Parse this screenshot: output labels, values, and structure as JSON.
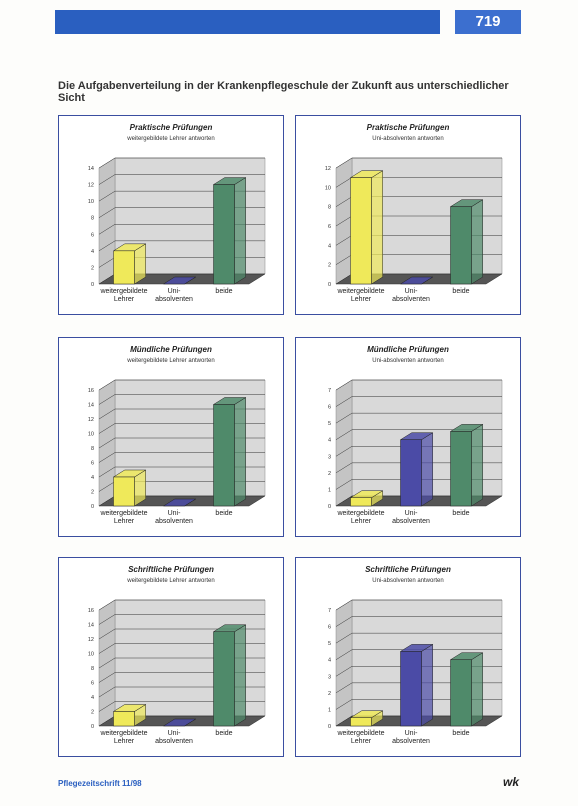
{
  "header": {
    "page_number": "719"
  },
  "title": "Die Aufgabenverteilung in der Krankenpflegeschule der Zukunft aus unterschiedlicher Sicht",
  "chart_data": [
    {
      "type": "bar3d",
      "title": "Praktische Prüfungen",
      "subtitle": "weitergebildete Lehrer antworten",
      "categories": [
        "weitergebildete\nLehrer",
        "Uni-\nabsolventen",
        "beide"
      ],
      "values": [
        4,
        0,
        12
      ],
      "colors": [
        "#efe95a",
        "#4b4ba6",
        "#4f8a6a"
      ],
      "ylim": [
        0,
        14
      ],
      "yticks": [
        0,
        2,
        4,
        6,
        8,
        10,
        12,
        14
      ],
      "grid": true
    },
    {
      "type": "bar3d",
      "title": "Praktische Prüfungen",
      "subtitle": "Uni-absolventen antworten",
      "categories": [
        "weitergebildete\nLehrer",
        "Uni-\nabsolventen",
        "beide"
      ],
      "values": [
        11,
        0,
        8
      ],
      "colors": [
        "#efe95a",
        "#4b4ba6",
        "#4f8a6a"
      ],
      "ylim": [
        0,
        12
      ],
      "yticks": [
        0,
        2,
        4,
        6,
        8,
        10,
        12
      ],
      "grid": true
    },
    {
      "type": "bar3d",
      "title": "Mündliche Prüfungen",
      "subtitle": "weitergebildete Lehrer antworten",
      "categories": [
        "weitergebildete\nLehrer",
        "Uni-\nabsolventen",
        "beide"
      ],
      "values": [
        4,
        0,
        14
      ],
      "colors": [
        "#efe95a",
        "#4b4ba6",
        "#4f8a6a"
      ],
      "ylim": [
        0,
        16
      ],
      "yticks": [
        0,
        2,
        4,
        6,
        8,
        10,
        12,
        14,
        16
      ],
      "grid": true
    },
    {
      "type": "bar3d",
      "title": "Mündliche Prüfungen",
      "subtitle": "Uni-absolventen antworten",
      "categories": [
        "weitergebildete\nLehrer",
        "Uni-\nabsolventen",
        "beide"
      ],
      "values": [
        0.5,
        4,
        4.5
      ],
      "colors": [
        "#efe95a",
        "#4b4ba6",
        "#4f8a6a"
      ],
      "ylim": [
        0,
        7
      ],
      "yticks": [
        0,
        1,
        2,
        3,
        4,
        5,
        6,
        7
      ],
      "grid": true
    },
    {
      "type": "bar3d",
      "title": "Schriftliche Prüfungen",
      "subtitle": "weitergebildete Lehrer antworten",
      "categories": [
        "weitergebildete\nLehrer",
        "Uni-\nabsolventen",
        "beide"
      ],
      "values": [
        2,
        0,
        13
      ],
      "colors": [
        "#efe95a",
        "#4b4ba6",
        "#4f8a6a"
      ],
      "ylim": [
        0,
        16
      ],
      "yticks": [
        0,
        2,
        4,
        6,
        8,
        10,
        12,
        14,
        16
      ],
      "grid": true
    },
    {
      "type": "bar3d",
      "title": "Schriftliche Prüfungen",
      "subtitle": "Uni-absolventen antworten",
      "categories": [
        "weitergebildete\nLehrer",
        "Uni-\nabsolventen",
        "beide"
      ],
      "values": [
        0.5,
        4.5,
        4
      ],
      "colors": [
        "#efe95a",
        "#4b4ba6",
        "#4f8a6a"
      ],
      "ylim": [
        0,
        7
      ],
      "yticks": [
        0,
        1,
        2,
        3,
        4,
        5,
        6,
        7
      ],
      "grid": true
    }
  ],
  "footer": {
    "journal": "Pflegezeitschrift 11/98",
    "logo": "wk"
  }
}
